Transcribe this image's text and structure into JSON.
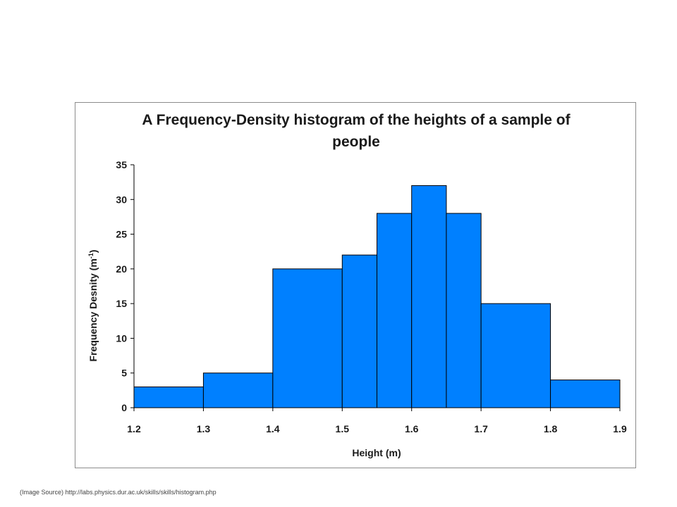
{
  "chart_data": {
    "type": "bar",
    "title_lines": [
      "A Frequency-Density histogram of the heights of a sample of",
      "people"
    ],
    "xlabel": "Height (m)",
    "ylabel_main": "Frequency Desnity (m",
    "ylabel_sup": "-1",
    "ylabel_close": ")",
    "xlim": [
      1.2,
      1.9
    ],
    "ylim": [
      0,
      35
    ],
    "x_ticks": [
      1.2,
      1.3,
      1.4,
      1.5,
      1.6,
      1.7,
      1.8,
      1.9
    ],
    "x_tick_labels": [
      "1.2",
      "1.3",
      "1.4",
      "1.5",
      "1.6",
      "1.7",
      "1.8",
      "1.9"
    ],
    "y_ticks": [
      0,
      5,
      10,
      15,
      20,
      25,
      30,
      35
    ],
    "y_tick_labels": [
      "0",
      "5",
      "10",
      "15",
      "20",
      "25",
      "30",
      "35"
    ],
    "grid": false,
    "legend": "none",
    "bar_color": "#0080ff",
    "bins": [
      {
        "start": 1.2,
        "end": 1.3,
        "value": 3
      },
      {
        "start": 1.3,
        "end": 1.4,
        "value": 5
      },
      {
        "start": 1.4,
        "end": 1.5,
        "value": 20
      },
      {
        "start": 1.5,
        "end": 1.55,
        "value": 22
      },
      {
        "start": 1.55,
        "end": 1.6,
        "value": 28
      },
      {
        "start": 1.6,
        "end": 1.65,
        "value": 32
      },
      {
        "start": 1.65,
        "end": 1.7,
        "value": 28
      },
      {
        "start": 1.7,
        "end": 1.8,
        "value": 15
      },
      {
        "start": 1.8,
        "end": 1.9,
        "value": 4
      }
    ]
  },
  "source_note": "(Image Source) http://labs.physics.dur.ac.uk/skills/skills/histogram.php"
}
